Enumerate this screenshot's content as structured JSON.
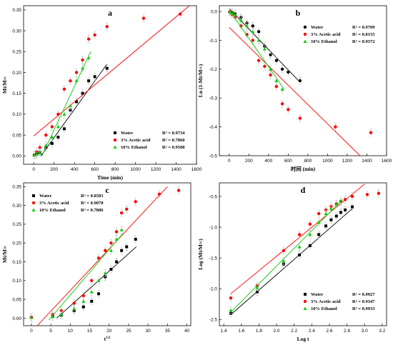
{
  "colors": {
    "water": "#000000",
    "acid": "#ff0000",
    "ethanol": "#00cc00",
    "error": "#bbbbbb"
  },
  "chart_data": [
    {
      "id": "a",
      "type": "scatter",
      "label": "a",
      "xlabel": "Time (min)",
      "ylabel": "Mt/M∞",
      "xlim": [
        -100,
        1600
      ],
      "ylim": [
        -0.02,
        0.36
      ],
      "xticks": [
        0,
        200,
        400,
        600,
        800,
        1000,
        1200,
        1400,
        1600
      ],
      "yticks": [
        0.0,
        0.05,
        0.1,
        0.15,
        0.2,
        0.25,
        0.3,
        0.35
      ],
      "ytick_decimals": 2,
      "legend_position": "bottom-right",
      "series": [
        {
          "name": "Water",
          "r2": "R² = 0.9734",
          "marker": "square",
          "color": "#000000",
          "x": [
            5,
            30,
            60,
            120,
            180,
            240,
            300,
            360,
            420,
            480,
            540,
            600,
            720
          ],
          "y": [
            0.002,
            0.004,
            0.008,
            0.02,
            0.03,
            0.045,
            0.065,
            0.11,
            0.13,
            0.15,
            0.18,
            0.19,
            0.21
          ],
          "fit": [
            [
              70,
              0.0
            ],
            [
              720,
              0.22
            ]
          ]
        },
        {
          "name": "3% Acetic acid",
          "r2": "R² = 0.7860",
          "marker": "circle",
          "color": "#ff0000",
          "x": [
            5,
            30,
            60,
            120,
            180,
            240,
            300,
            360,
            420,
            480,
            540,
            600,
            720,
            1080,
            1440
          ],
          "y": [
            0.002,
            0.01,
            0.02,
            0.05,
            0.07,
            0.1,
            0.16,
            0.18,
            0.2,
            0.23,
            0.28,
            0.29,
            0.31,
            0.33,
            0.34
          ],
          "fit": [
            [
              0,
              0.048
            ],
            [
              1530,
              0.36
            ]
          ]
        },
        {
          "name": "10% Ethanol",
          "r2": "R² = 0.9508",
          "marker": "triangle",
          "color": "#00cc00",
          "x": [
            5,
            30,
            60,
            120,
            180,
            240,
            300,
            360,
            420,
            480,
            540
          ],
          "y": [
            0.002,
            0.005,
            0.01,
            0.025,
            0.045,
            0.07,
            0.1,
            0.12,
            0.18,
            0.21,
            0.235
          ],
          "fit": [
            [
              80,
              0.0
            ],
            [
              560,
              0.25
            ]
          ]
        }
      ]
    },
    {
      "id": "b",
      "type": "scatter",
      "label": "b",
      "xlabel": "时间 (min)",
      "ylabel": "Ln (1-Mt/M∞)",
      "xlim": [
        -100,
        1600
      ],
      "ylim": [
        -0.5,
        0.02
      ],
      "xticks": [
        0,
        200,
        400,
        600,
        800,
        1000,
        1200,
        1400,
        1600
      ],
      "yticks": [
        0.0,
        -0.1,
        -0.2,
        -0.3,
        -0.4,
        -0.5
      ],
      "ytick_decimals": 1,
      "legend_position": "top-right",
      "series": [
        {
          "name": "Water",
          "r2": "R² = 0.9709",
          "marker": "circle",
          "color": "#000000",
          "x": [
            5,
            30,
            60,
            120,
            180,
            240,
            300,
            360,
            420,
            480,
            540,
            600,
            720
          ],
          "y": [
            -0.002,
            -0.004,
            -0.008,
            -0.02,
            -0.04,
            -0.05,
            -0.07,
            -0.12,
            -0.15,
            -0.17,
            -0.2,
            -0.21,
            -0.24
          ],
          "fit": [
            [
              0,
              0.01
            ],
            [
              720,
              -0.245
            ]
          ]
        },
        {
          "name": "3% Acetic acid",
          "r2": "R² = 0.8155",
          "marker": "circle",
          "color": "#ff0000",
          "x": [
            5,
            30,
            60,
            120,
            180,
            240,
            300,
            360,
            420,
            480,
            540,
            600,
            720,
            1080,
            1440
          ],
          "y": [
            -0.002,
            -0.01,
            -0.02,
            -0.05,
            -0.08,
            -0.1,
            -0.17,
            -0.19,
            -0.22,
            -0.26,
            -0.32,
            -0.34,
            -0.37,
            -0.4,
            -0.42
          ],
          "fit": [
            [
              0,
              -0.055
            ],
            [
              1330,
              -0.5
            ]
          ]
        },
        {
          "name": "10% Ethanol",
          "r2": "R² = 0.9372",
          "marker": "triangle",
          "color": "#00cc00",
          "x": [
            5,
            30,
            60,
            120,
            180,
            240,
            300,
            360,
            420,
            480,
            540
          ],
          "y": [
            -0.002,
            -0.005,
            -0.01,
            -0.03,
            -0.05,
            -0.07,
            -0.1,
            -0.13,
            -0.2,
            -0.24,
            -0.27
          ],
          "fit": [
            [
              0,
              0.005
            ],
            [
              560,
              -0.27
            ]
          ]
        }
      ]
    },
    {
      "id": "c",
      "type": "scatter",
      "label": "c",
      "xlabel": "t^1/2",
      "ylabel": "Mt/M∞",
      "xlim": [
        -2,
        41
      ],
      "ylim": [
        -0.02,
        0.36
      ],
      "xticks": [
        0,
        5,
        10,
        15,
        20,
        25,
        30,
        35,
        40
      ],
      "yticks": [
        0.0,
        0.05,
        0.1,
        0.15,
        0.2,
        0.25,
        0.3,
        0.35
      ],
      "ytick_decimals": 2,
      "legend_position": "top-left",
      "series": [
        {
          "name": "Water",
          "r2": "R² = 0.8583",
          "marker": "square",
          "color": "#000000",
          "x": [
            0,
            5.5,
            7.7,
            11,
            13.4,
            15.5,
            17.3,
            19,
            20.5,
            21.9,
            23.2,
            24.5,
            26.8
          ],
          "y": [
            0.002,
            0.004,
            0.008,
            0.02,
            0.03,
            0.045,
            0.065,
            0.11,
            0.13,
            0.15,
            0.18,
            0.19,
            0.21
          ],
          "fit": [
            [
              6.5,
              0.0
            ],
            [
              27,
              0.19
            ]
          ]
        },
        {
          "name": "3% Acetic acid",
          "r2": "R² = 0.9078",
          "marker": "circle",
          "color": "#ff0000",
          "x": [
            0,
            5.5,
            7.7,
            11,
            13.4,
            15.5,
            17.3,
            19,
            20.5,
            21.9,
            23.2,
            24.5,
            26.8,
            32.9,
            37.9
          ],
          "y": [
            0.002,
            0.01,
            0.02,
            0.04,
            0.06,
            0.1,
            0.16,
            0.18,
            0.2,
            0.23,
            0.28,
            0.29,
            0.31,
            0.33,
            0.34
          ],
          "fit": [
            [
              1.5,
              -0.02
            ],
            [
              35,
              0.35
            ]
          ]
        },
        {
          "name": "10% Ethanol",
          "r2": "R² = 0.7886",
          "marker": "triangle",
          "color": "#00cc00",
          "x": [
            0,
            5.5,
            7.7,
            11,
            13.4,
            15.5,
            17.3,
            19,
            20.5,
            21.9,
            23.2
          ],
          "y": [
            0.002,
            0.005,
            0.01,
            0.025,
            0.045,
            0.07,
            0.1,
            0.12,
            0.18,
            0.21,
            0.235
          ],
          "fit": [
            [
              4.5,
              -0.005
            ],
            [
              23.5,
              0.225
            ]
          ]
        }
      ]
    },
    {
      "id": "d",
      "type": "scatter",
      "label": "d",
      "xlabel": "Log t",
      "ylabel": "Log (Mt/M∞)",
      "xlim": [
        1.35,
        3.25
      ],
      "ylim": [
        -2.6,
        -0.28
      ],
      "xticks": [
        1.4,
        1.6,
        1.8,
        2.0,
        2.2,
        2.4,
        2.6,
        2.8,
        3.0,
        3.2
      ],
      "yticks": [
        -0.5,
        -1.0,
        -1.5,
        -2.0,
        -2.5
      ],
      "ytick_decimals": 1,
      "legend_position": "bottom-right",
      "series": [
        {
          "name": "Water",
          "r2": "R² = 0.9927",
          "marker": "square",
          "color": "#000000",
          "x": [
            1.48,
            1.78,
            2.08,
            2.26,
            2.38,
            2.48,
            2.56,
            2.62,
            2.68,
            2.73,
            2.78,
            2.86
          ],
          "y": [
            -2.4,
            -2.05,
            -1.6,
            -1.45,
            -1.3,
            -1.12,
            -0.98,
            -0.88,
            -0.82,
            -0.76,
            -0.72,
            -0.67
          ],
          "fit": [
            [
              1.48,
              -2.42
            ],
            [
              2.86,
              -0.7
            ]
          ]
        },
        {
          "name": "3% Acetic acid",
          "r2": "R² = 0.9347",
          "marker": "circle",
          "color": "#ff0000",
          "x": [
            1.48,
            1.78,
            2.08,
            2.26,
            2.38,
            2.48,
            2.56,
            2.62,
            2.68,
            2.73,
            2.78,
            2.86,
            3.03,
            3.16
          ],
          "y": [
            -2.15,
            -1.95,
            -1.38,
            -1.12,
            -0.95,
            -0.78,
            -0.72,
            -0.66,
            -0.62,
            -0.58,
            -0.55,
            -0.5,
            -0.47,
            -0.45
          ],
          "fit": [
            [
              1.48,
              -2.08
            ],
            [
              3.0,
              -0.3
            ]
          ]
        },
        {
          "name": "10% Ethanol",
          "r2": "R² = 0.9933",
          "marker": "triangle",
          "color": "#00cc00",
          "x": [
            1.48,
            1.78,
            2.08,
            2.26,
            2.38,
            2.48,
            2.56,
            2.62,
            2.68,
            2.73
          ],
          "y": [
            -2.35,
            -1.98,
            -1.55,
            -1.32,
            -1.12,
            -0.92,
            -0.78,
            -0.7,
            -0.63,
            -0.58
          ],
          "fit": [
            [
              1.48,
              -2.38
            ],
            [
              2.75,
              -0.55
            ]
          ]
        }
      ]
    }
  ]
}
